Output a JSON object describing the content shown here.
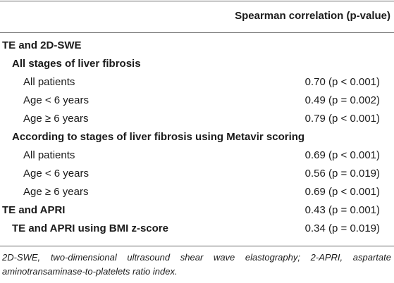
{
  "table": {
    "column_header": "Spearman correlation (p-value)",
    "rows": [
      {
        "label": "TE and 2D-SWE",
        "level": 0,
        "value": ""
      },
      {
        "label": "All stages of liver fibrosis",
        "level": 1,
        "value": ""
      },
      {
        "label": "All patients",
        "level": 2,
        "value": "0.70 (p < 0.001)"
      },
      {
        "label": "Age < 6 years",
        "level": 2,
        "value": "0.49 (p = 0.002)"
      },
      {
        "label": "Age ≥ 6 years",
        "level": 2,
        "value": "0.79 (p < 0.001)"
      },
      {
        "label": "According to stages of liver fibrosis using Metavir scoring",
        "level": 1,
        "value": ""
      },
      {
        "label": "All patients",
        "level": 2,
        "value": "0.69 (p < 0.001)"
      },
      {
        "label": "Age < 6 years",
        "level": 2,
        "value": "0.56 (p = 0.019)"
      },
      {
        "label": "Age ≥ 6 years",
        "level": 2,
        "value": "0.69 (p < 0.001)"
      },
      {
        "label": "TE and APRI",
        "level": 0,
        "value": "0.43 (p = 0.001)"
      },
      {
        "label": "TE and APRI using BMI z-score",
        "level": 1,
        "value": "0.34 (p = 0.019)"
      }
    ]
  },
  "footnote": "2D-SWE, two-dimensional ultrasound shear wave elastography; 2-APRI, aspartate aminotransaminase-to-platelets ratio index."
}
